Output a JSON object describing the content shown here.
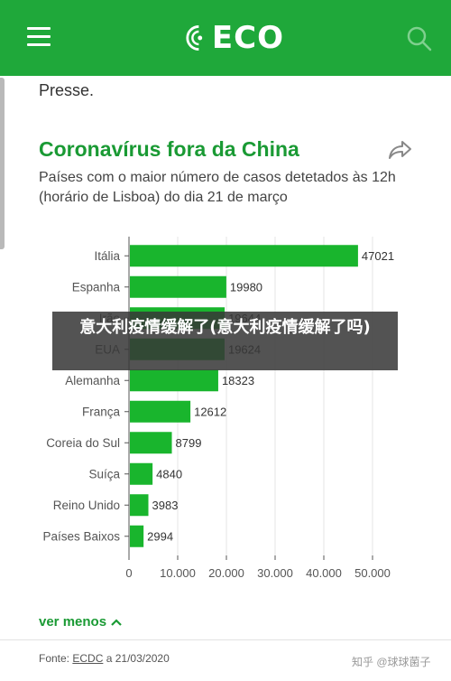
{
  "header": {
    "logo_text": "ECO",
    "menu_icon": "hamburger-menu-icon",
    "search_icon": "search-icon",
    "brand_color": "#1fa83a"
  },
  "article": {
    "previous_text": "Presse."
  },
  "chart_data": {
    "type": "bar",
    "orientation": "horizontal",
    "title": "Coronavírus fora da China",
    "subtitle": "Países com o maior número de casos detetados às 12h (horário de Lisboa) do dia 21 de março",
    "categories": [
      "Itália",
      "Espanha",
      "Irão",
      "EUA",
      "Alemanha",
      "França",
      "Coreia do Sul",
      "Suíça",
      "Reino Unido",
      "Países Baixos"
    ],
    "values": [
      47021,
      19980,
      19644,
      19624,
      18323,
      12612,
      8799,
      4840,
      3983,
      2994
    ],
    "value_labels": [
      "47021",
      "19980",
      "19644",
      "19624",
      "18323",
      "12612",
      "8799",
      "4840",
      "3983",
      "2994"
    ],
    "xlim": [
      0,
      50000
    ],
    "x_ticks": [
      0,
      10000,
      20000,
      30000,
      40000,
      50000
    ],
    "x_tick_labels": [
      "0",
      "10.000",
      "20.000",
      "30.000",
      "40.000",
      "50.000"
    ],
    "grid": true,
    "bar_color": "#19b52d"
  },
  "footer": {
    "toggle_label": "ver menos",
    "source_prefix": "Fonte: ",
    "source_link": "ECDC",
    "source_suffix": " a 21/03/2020",
    "watermark": "知乎 @球球菌子"
  },
  "overlay": {
    "text": "意大利疫情缓解了(意大利疫情缓解了吗)"
  }
}
